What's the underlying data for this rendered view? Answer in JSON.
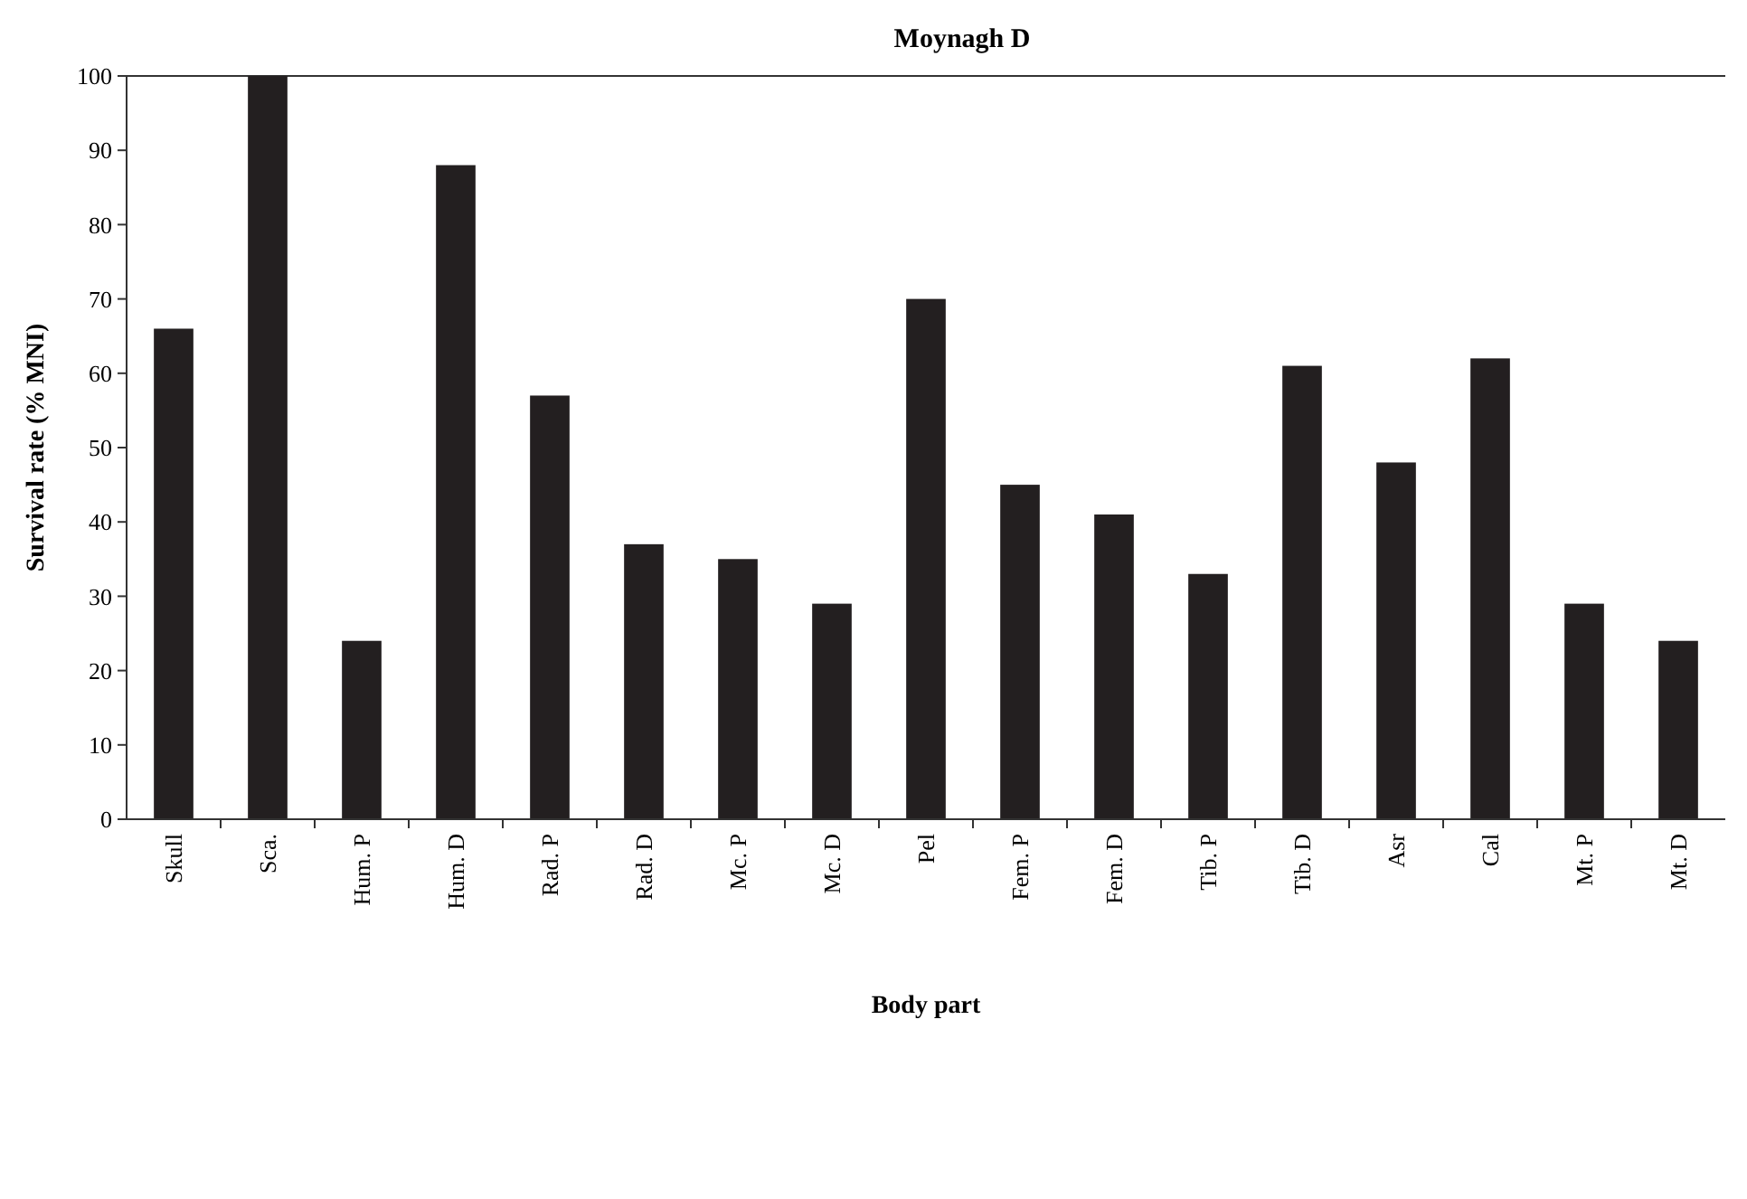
{
  "chart_data": {
    "type": "bar",
    "title": "Moynagh D",
    "xlabel": "Body part",
    "ylabel": "Survival rate (% MNI)",
    "categories": [
      "Skull",
      "Sca.",
      "Hum. P",
      "Hum. D",
      "Rad. P",
      "Rad. D",
      "Mc. P",
      "Mc. D",
      "Pel",
      "Fem. P",
      "Fem. D",
      "Tib. P",
      "Tib. D",
      "Asr",
      "Cal",
      "Mt. P",
      "Mt. D"
    ],
    "values": [
      66,
      100,
      24,
      88,
      57,
      37,
      35,
      29,
      70,
      45,
      41,
      33,
      61,
      48,
      62,
      29,
      24
    ],
    "color": "#231f20",
    "ylim": [
      0,
      100
    ],
    "yticks": [
      0,
      10,
      20,
      30,
      40,
      50,
      60,
      70,
      80,
      90,
      100
    ],
    "grid": false
  }
}
